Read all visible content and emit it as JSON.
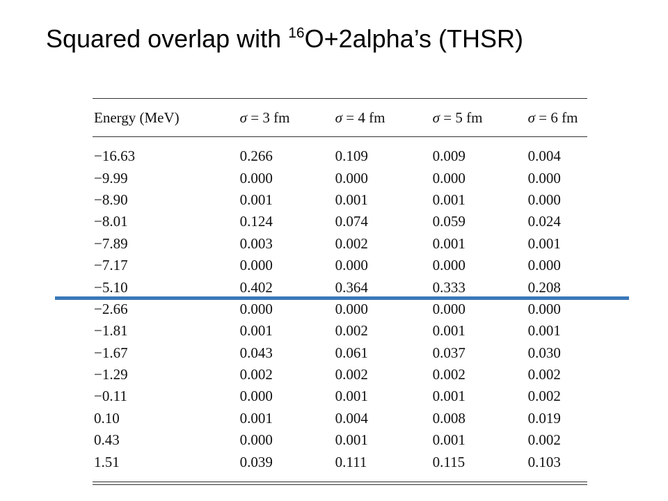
{
  "title": {
    "prefix": "Squared overlap with ",
    "superscript": "16",
    "suffix": "O+2alpha’s (THSR)"
  },
  "table": {
    "headers": {
      "energy": "Energy (MeV)",
      "s3": "σ = 3 fm",
      "s4": "σ = 4 fm",
      "s5": "σ = 5 fm",
      "s6": "σ = 6 fm"
    },
    "rows": [
      {
        "energy": "−16.63",
        "s3": "0.266",
        "s4": "0.109",
        "s5": "0.009",
        "s6": "0.004"
      },
      {
        "energy": "−9.99",
        "s3": "0.000",
        "s4": "0.000",
        "s5": "0.000",
        "s6": "0.000"
      },
      {
        "energy": "−8.90",
        "s3": "0.001",
        "s4": "0.001",
        "s5": "0.001",
        "s6": "0.000"
      },
      {
        "energy": "−8.01",
        "s3": "0.124",
        "s4": "0.074",
        "s5": "0.059",
        "s6": "0.024"
      },
      {
        "energy": "−7.89",
        "s3": "0.003",
        "s4": "0.002",
        "s5": "0.001",
        "s6": "0.001"
      },
      {
        "energy": "−7.17",
        "s3": "0.000",
        "s4": "0.000",
        "s5": "0.000",
        "s6": "0.000"
      },
      {
        "energy": "−5.10",
        "s3": "0.402",
        "s4": "0.364",
        "s5": "0.333",
        "s6": "0.208"
      },
      {
        "energy": "−2.66",
        "s3": "0.000",
        "s4": "0.000",
        "s5": "0.000",
        "s6": "0.000"
      },
      {
        "energy": "−1.81",
        "s3": "0.001",
        "s4": "0.002",
        "s5": "0.001",
        "s6": "0.001"
      },
      {
        "energy": "−1.67",
        "s3": "0.043",
        "s4": "0.061",
        "s5": "0.037",
        "s6": "0.030"
      },
      {
        "energy": "−1.29",
        "s3": "0.002",
        "s4": "0.002",
        "s5": "0.002",
        "s6": "0.002"
      },
      {
        "energy": "−0.11",
        "s3": "0.000",
        "s4": "0.001",
        "s5": "0.001",
        "s6": "0.002"
      },
      {
        "energy": "0.10",
        "s3": "0.001",
        "s4": "0.004",
        "s5": "0.008",
        "s6": "0.019"
      },
      {
        "energy": "0.43",
        "s3": "0.000",
        "s4": "0.001",
        "s5": "0.001",
        "s6": "0.002"
      },
      {
        "energy": "1.51",
        "s3": "0.039",
        "s4": "0.111",
        "s5": "0.115",
        "s6": "0.103"
      }
    ]
  },
  "colors": {
    "divider": "#3a78b8",
    "text": "#111111"
  }
}
